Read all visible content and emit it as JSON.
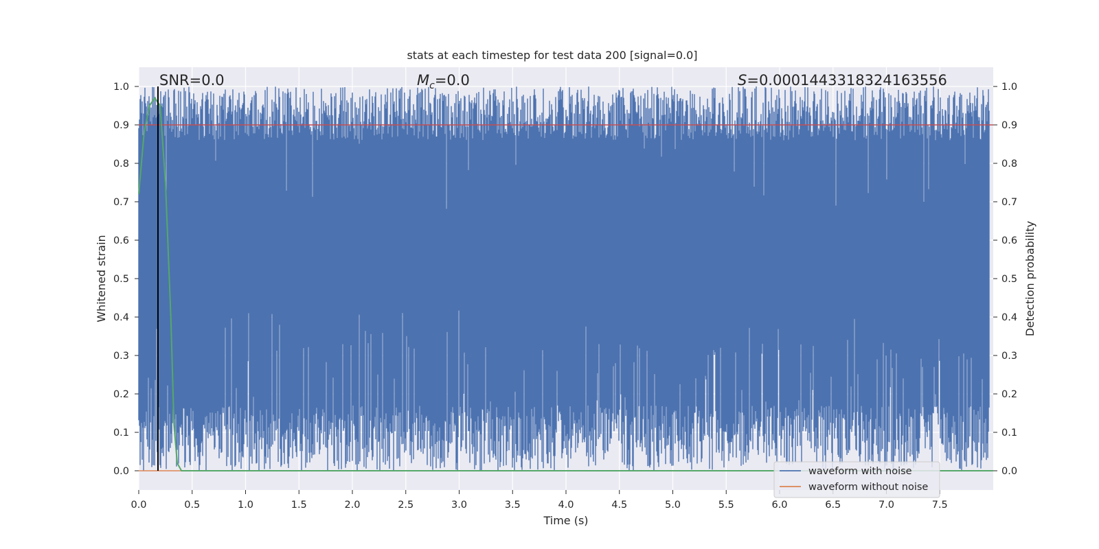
{
  "chart_data": {
    "type": "line",
    "title": "stats at each timestep for test data 200 [signal=0.0]",
    "xlabel": "Time (s)",
    "ylabel": "Whitened strain",
    "y2label": "Detection probability",
    "xlim": [
      0.0,
      8.0
    ],
    "ylim": [
      -0.05,
      1.05
    ],
    "y2lim": [
      -0.05,
      1.05
    ],
    "x_ticks": [
      "0.0",
      "0.5",
      "1.0",
      "1.5",
      "2.0",
      "2.5",
      "3.0",
      "3.5",
      "4.0",
      "4.5",
      "5.0",
      "5.5",
      "6.0",
      "6.5",
      "7.0",
      "7.5"
    ],
    "y_ticks": [
      "0.0",
      "0.1",
      "0.2",
      "0.3",
      "0.4",
      "0.5",
      "0.6",
      "0.7",
      "0.8",
      "0.9",
      "1.0"
    ],
    "y2_ticks": [
      "0.0",
      "0.1",
      "0.2",
      "0.3",
      "0.4",
      "0.5",
      "0.6",
      "0.7",
      "0.8",
      "0.9",
      "1.0"
    ],
    "grid": true,
    "legend_position": "bottom-right",
    "annotations": {
      "snr": "SNR=0.0",
      "mc": "M_c=0.0",
      "s": "S=0.0001443318324163556"
    },
    "series": [
      {
        "name": "waveform with noise",
        "color": "#4c72b0",
        "description_range": [
          0.0,
          1.0
        ],
        "x_range": [
          0.0,
          8.0
        ]
      },
      {
        "name": "waveform without noise",
        "color": "#dd8452",
        "y_constant": 0.0
      },
      {
        "name": "",
        "color": "#55a868",
        "points": [
          [
            0.0,
            0.72
          ],
          [
            0.05,
            0.88
          ],
          [
            0.1,
            0.95
          ],
          [
            0.15,
            0.97
          ],
          [
            0.2,
            0.95
          ],
          [
            0.25,
            0.75
          ],
          [
            0.3,
            0.4
          ],
          [
            0.33,
            0.12
          ],
          [
            0.36,
            0.02
          ],
          [
            0.4,
            0.0
          ],
          [
            8.0,
            0.0
          ]
        ]
      }
    ],
    "threshold": {
      "value": 0.9,
      "color": "#c44e52"
    },
    "vline": {
      "x": 0.18,
      "color": "#000000"
    }
  }
}
